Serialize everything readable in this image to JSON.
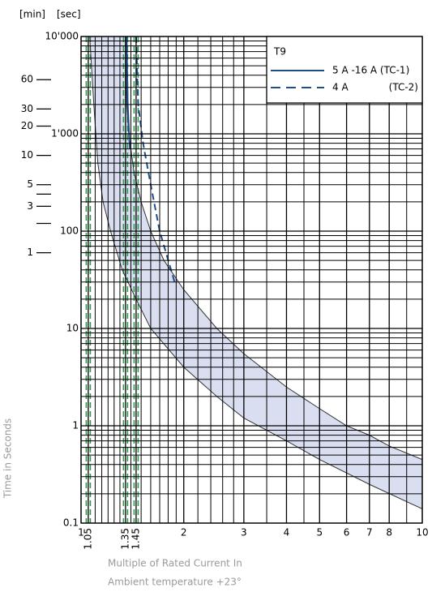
{
  "chart_data": {
    "type": "line",
    "xscale": "log",
    "yscale": "log",
    "y_unit_label": "[sec]",
    "y2_unit_label": "[min]",
    "ylabel": "Time in Seconds",
    "xlabel": "Multiple of Rated Current In",
    "xlabel2": "Ambient temperature +23°",
    "xlim": [
      1,
      10
    ],
    "ylim": [
      0.1,
      10000
    ],
    "xticks": [
      1,
      1.05,
      1.35,
      1.45,
      2,
      3,
      4,
      5,
      6,
      7,
      8,
      10
    ],
    "yticks": [
      {
        "value": 10000,
        "label": "10'000"
      },
      {
        "value": 1000,
        "label": "1'000"
      },
      100,
      10,
      1,
      0.1
    ],
    "minute_ticks": [
      {
        "value": 3600,
        "label": "60"
      },
      {
        "value": 1800,
        "label": "30"
      },
      {
        "value": 1200,
        "label": "20"
      },
      {
        "value": 600,
        "label": "10"
      },
      {
        "value": 300,
        "label": "5"
      },
      {
        "value": 240,
        "label": null
      },
      {
        "value": 180,
        "label": "3"
      },
      {
        "value": 120,
        "label": null
      },
      {
        "value": 60,
        "label": "1"
      }
    ],
    "xgrid": [
      1.1,
      1.15,
      1.2,
      1.25,
      1.3,
      1.4,
      1.5,
      1.6,
      1.7,
      1.8,
      1.9,
      2.2,
      2.4,
      2.6,
      2.8,
      3.5,
      4.5,
      9
    ],
    "ygrid": [
      0.2,
      0.3,
      0.4,
      0.5,
      0.6,
      0.7,
      0.8,
      0.9,
      2,
      3,
      4,
      5,
      6,
      7,
      8,
      9,
      20,
      30,
      40,
      50,
      60,
      70,
      80,
      90,
      200,
      300,
      400,
      500,
      600,
      700,
      800,
      900,
      2000,
      3000,
      4000,
      5000,
      6000,
      7000,
      8000,
      9000
    ],
    "grid": true,
    "marker_lines": {
      "values": [
        1.05,
        1.35,
        1.45
      ],
      "color": "#2e9a4e"
    },
    "band": {
      "color": "#d9dff0",
      "edge_color": "#333333",
      "lower": {
        "x": [
          1.06,
          1.09,
          1.12,
          1.16,
          1.22,
          1.32,
          1.45,
          1.6,
          2,
          2.5,
          3,
          4,
          5,
          7,
          10
        ],
        "values": [
          10000,
          2000,
          500,
          200,
          100,
          40,
          20,
          10,
          4,
          2,
          1.2,
          0.7,
          0.45,
          0.25,
          0.14
        ]
      },
      "upper": {
        "x": [
          1.35,
          1.36,
          1.38,
          1.43,
          1.5,
          1.6,
          1.75,
          2,
          2.5,
          3,
          4,
          5,
          6,
          7,
          8,
          10
        ],
        "values": [
          10000,
          2000,
          1000,
          400,
          200,
          100,
          50,
          25,
          10,
          5.5,
          2.5,
          1.5,
          1.0,
          0.8,
          0.62,
          0.45
        ]
      }
    },
    "legend_title": "T9",
    "legend": "upper right",
    "series": [
      {
        "name": "5 A -16 A (TC-1)",
        "color": "#1f4e8c",
        "dash": false,
        "x": [
          1.36,
          1.37,
          1.39
        ],
        "values": [
          10000,
          2000,
          700
        ]
      },
      {
        "name": "4 A",
        "note": "(TC-2)",
        "color": "#1f4e8c",
        "dash": true,
        "x": [
          1.45,
          1.47,
          1.52,
          1.6,
          1.7,
          1.88
        ],
        "values": [
          10000,
          2000,
          800,
          300,
          100,
          30
        ]
      }
    ]
  }
}
